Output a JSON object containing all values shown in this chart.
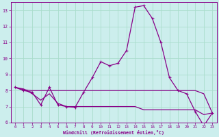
{
  "xlabel": "Windchill (Refroidissement éolien,°C)",
  "background_color": "#cceeed",
  "grid_color": "#aaddcc",
  "line_color": "#880088",
  "xlim": [
    -0.5,
    23.5
  ],
  "ylim": [
    6,
    13.5
  ],
  "xticks": [
    0,
    1,
    2,
    3,
    4,
    5,
    6,
    7,
    8,
    9,
    10,
    11,
    12,
    13,
    14,
    15,
    16,
    17,
    18,
    19,
    20,
    21,
    22,
    23
  ],
  "yticks": [
    6,
    7,
    8,
    9,
    10,
    11,
    12,
    13
  ],
  "line1_x": [
    0,
    1,
    2,
    3,
    4,
    5,
    6,
    7,
    8,
    9,
    10,
    11,
    12,
    13,
    14,
    15,
    16,
    17,
    18,
    19,
    20,
    21,
    22,
    23
  ],
  "line1_y": [
    8.2,
    8.0,
    7.9,
    7.1,
    8.2,
    7.1,
    7.0,
    6.95,
    7.9,
    8.8,
    9.8,
    9.55,
    9.7,
    10.5,
    13.2,
    13.3,
    12.5,
    11.0,
    8.8,
    8.0,
    7.8,
    6.7,
    5.8,
    6.6
  ],
  "line2_x": [
    0,
    1,
    2,
    3,
    4,
    5,
    6,
    7,
    8,
    9,
    10,
    11,
    12,
    13,
    14,
    15,
    16,
    17,
    18,
    19,
    20,
    21,
    22,
    23
  ],
  "line2_y": [
    8.2,
    8.05,
    8.0,
    8.0,
    8.0,
    8.0,
    8.0,
    8.0,
    8.0,
    8.0,
    8.0,
    8.0,
    8.0,
    8.0,
    8.0,
    8.0,
    8.0,
    8.0,
    8.0,
    8.0,
    8.0,
    8.0,
    7.8,
    6.6
  ],
  "line3_x": [
    0,
    1,
    2,
    3,
    4,
    5,
    6,
    7,
    8,
    9,
    10,
    11,
    12,
    13,
    14,
    15,
    16,
    17,
    18,
    19,
    20,
    21,
    22,
    23
  ],
  "line3_y": [
    8.2,
    8.1,
    7.8,
    7.4,
    7.8,
    7.2,
    7.0,
    7.0,
    7.0,
    7.0,
    7.0,
    7.0,
    7.0,
    7.0,
    7.0,
    6.8,
    6.8,
    6.8,
    6.8,
    6.8,
    6.8,
    6.8,
    6.5,
    6.6
  ]
}
